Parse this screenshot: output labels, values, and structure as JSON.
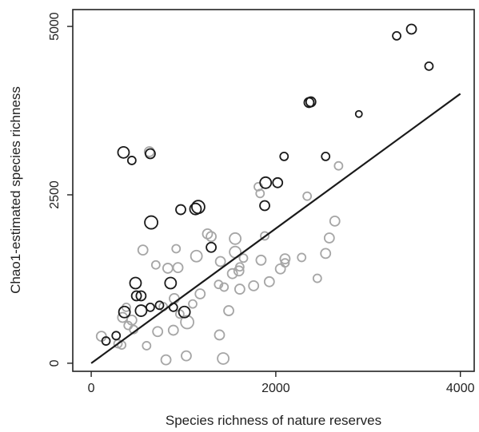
{
  "chart_data": {
    "type": "scatter",
    "xlabel": "Species richness of nature reserves",
    "ylabel": "Chao1-estimated species richness",
    "xlim": [
      -200,
      4150
    ],
    "ylim": [
      -120,
      5250
    ],
    "x_ticks": [
      0,
      2000,
      4000
    ],
    "y_ticks": [
      0,
      2500,
      5000
    ],
    "x_tick_labels": [
      "0",
      "2000",
      "4000"
    ],
    "y_tick_labels": [
      "0",
      "2500",
      "5000"
    ],
    "grid": false,
    "colors": {
      "gray_series": "#a6a6a6",
      "black_series": "#1a1a1a",
      "line": "#1a1a1a",
      "axis": "#222222"
    },
    "trend_line": {
      "x": [
        0,
        4000
      ],
      "y": [
        0,
        4000
      ]
    },
    "series": [
      {
        "points": [
          {
            "x": 350,
            "y": 3130,
            "s": 7
          },
          {
            "x": 440,
            "y": 3010,
            "s": 5
          },
          {
            "x": 640,
            "y": 3110,
            "s": 6
          },
          {
            "x": 650,
            "y": 2090,
            "s": 8
          },
          {
            "x": 970,
            "y": 2280,
            "s": 6
          },
          {
            "x": 1130,
            "y": 2290,
            "s": 7
          },
          {
            "x": 1160,
            "y": 2320,
            "s": 8
          },
          {
            "x": 1300,
            "y": 1720,
            "s": 6
          },
          {
            "x": 1880,
            "y": 2340,
            "s": 6
          },
          {
            "x": 1890,
            "y": 2680,
            "s": 7
          },
          {
            "x": 2020,
            "y": 2680,
            "s": 6
          },
          {
            "x": 2090,
            "y": 3070,
            "s": 5
          },
          {
            "x": 2360,
            "y": 3870,
            "s": 6
          },
          {
            "x": 2380,
            "y": 3880,
            "s": 6
          },
          {
            "x": 2540,
            "y": 3070,
            "s": 5
          },
          {
            "x": 2900,
            "y": 3700,
            "s": 4
          },
          {
            "x": 3310,
            "y": 4860,
            "s": 5
          },
          {
            "x": 3470,
            "y": 4960,
            "s": 6
          },
          {
            "x": 3660,
            "y": 4410,
            "s": 5
          },
          {
            "x": 160,
            "y": 330,
            "s": 5
          },
          {
            "x": 270,
            "y": 410,
            "s": 5
          },
          {
            "x": 360,
            "y": 760,
            "s": 7
          },
          {
            "x": 480,
            "y": 1190,
            "s": 7
          },
          {
            "x": 490,
            "y": 1000,
            "s": 6
          },
          {
            "x": 540,
            "y": 1000,
            "s": 6
          },
          {
            "x": 540,
            "y": 780,
            "s": 7
          },
          {
            "x": 640,
            "y": 830,
            "s": 5
          },
          {
            "x": 740,
            "y": 860,
            "s": 5
          },
          {
            "x": 860,
            "y": 1190,
            "s": 7
          },
          {
            "x": 890,
            "y": 830,
            "s": 5
          },
          {
            "x": 1010,
            "y": 760,
            "s": 7
          }
        ]
      },
      {
        "points": [
          {
            "x": 110,
            "y": 400,
            "s": 6
          },
          {
            "x": 290,
            "y": 290,
            "s": 5
          },
          {
            "x": 330,
            "y": 270,
            "s": 5
          },
          {
            "x": 340,
            "y": 680,
            "s": 6
          },
          {
            "x": 380,
            "y": 830,
            "s": 5
          },
          {
            "x": 400,
            "y": 560,
            "s": 5
          },
          {
            "x": 440,
            "y": 640,
            "s": 6
          },
          {
            "x": 460,
            "y": 500,
            "s": 5
          },
          {
            "x": 560,
            "y": 1680,
            "s": 6
          },
          {
            "x": 600,
            "y": 260,
            "s": 5
          },
          {
            "x": 630,
            "y": 3140,
            "s": 6
          },
          {
            "x": 700,
            "y": 1460,
            "s": 5
          },
          {
            "x": 720,
            "y": 470,
            "s": 6
          },
          {
            "x": 780,
            "y": 840,
            "s": 5
          },
          {
            "x": 810,
            "y": 50,
            "s": 6
          },
          {
            "x": 830,
            "y": 1410,
            "s": 6
          },
          {
            "x": 890,
            "y": 490,
            "s": 6
          },
          {
            "x": 900,
            "y": 960,
            "s": 6
          },
          {
            "x": 920,
            "y": 1700,
            "s": 5
          },
          {
            "x": 940,
            "y": 1420,
            "s": 6
          },
          {
            "x": 960,
            "y": 730,
            "s": 5
          },
          {
            "x": 1030,
            "y": 110,
            "s": 6
          },
          {
            "x": 1040,
            "y": 610,
            "s": 8
          },
          {
            "x": 1100,
            "y": 880,
            "s": 5
          },
          {
            "x": 1140,
            "y": 1590,
            "s": 7
          },
          {
            "x": 1180,
            "y": 1030,
            "s": 6
          },
          {
            "x": 1260,
            "y": 1920,
            "s": 6
          },
          {
            "x": 1300,
            "y": 1880,
            "s": 6
          },
          {
            "x": 1380,
            "y": 1170,
            "s": 5
          },
          {
            "x": 1390,
            "y": 420,
            "s": 6
          },
          {
            "x": 1400,
            "y": 1510,
            "s": 6
          },
          {
            "x": 1430,
            "y": 70,
            "s": 7
          },
          {
            "x": 1440,
            "y": 1130,
            "s": 5
          },
          {
            "x": 1490,
            "y": 780,
            "s": 6
          },
          {
            "x": 1530,
            "y": 1330,
            "s": 6
          },
          {
            "x": 1560,
            "y": 1850,
            "s": 7
          },
          {
            "x": 1560,
            "y": 1650,
            "s": 7
          },
          {
            "x": 1600,
            "y": 1370,
            "s": 6
          },
          {
            "x": 1610,
            "y": 1100,
            "s": 6
          },
          {
            "x": 1650,
            "y": 1560,
            "s": 5
          },
          {
            "x": 1760,
            "y": 1150,
            "s": 6
          },
          {
            "x": 1830,
            "y": 2520,
            "s": 5
          },
          {
            "x": 1840,
            "y": 1530,
            "s": 6
          },
          {
            "x": 1880,
            "y": 1890,
            "s": 5
          },
          {
            "x": 1930,
            "y": 1210,
            "s": 6
          },
          {
            "x": 2050,
            "y": 1400,
            "s": 6
          },
          {
            "x": 2100,
            "y": 1550,
            "s": 6
          },
          {
            "x": 2100,
            "y": 1490,
            "s": 5
          },
          {
            "x": 2280,
            "y": 1570,
            "s": 5
          },
          {
            "x": 2340,
            "y": 2480,
            "s": 5
          },
          {
            "x": 2450,
            "y": 1260,
            "s": 5
          },
          {
            "x": 2540,
            "y": 1630,
            "s": 6
          },
          {
            "x": 2580,
            "y": 1860,
            "s": 6
          },
          {
            "x": 2640,
            "y": 2110,
            "s": 6
          },
          {
            "x": 2680,
            "y": 2930,
            "s": 5
          },
          {
            "x": 1810,
            "y": 2620,
            "s": 5
          },
          {
            "x": 1610,
            "y": 1430,
            "s": 5
          }
        ]
      }
    ]
  }
}
